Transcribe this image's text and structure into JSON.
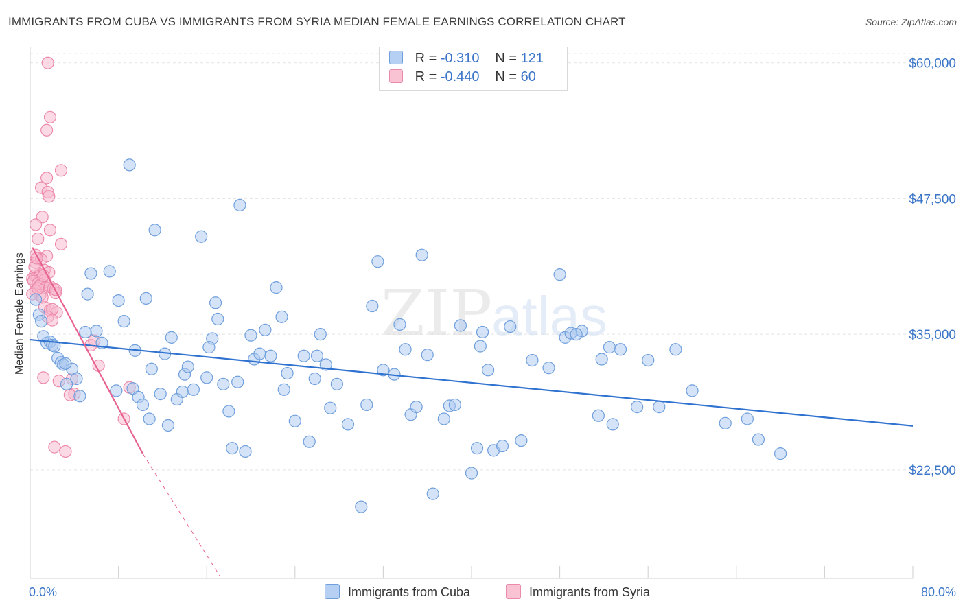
{
  "title": "IMMIGRANTS FROM CUBA VS IMMIGRANTS FROM SYRIA MEDIAN FEMALE EARNINGS CORRELATION CHART",
  "source": "Source: ZipAtlas.com",
  "watermark": {
    "zip": "ZIP",
    "atlas": "atlas"
  },
  "legend": {
    "cuba": {
      "r_label": "R = ",
      "r_value": "-0.310",
      "n_label": "N = ",
      "n_value": "121"
    },
    "syria": {
      "r_label": "R = ",
      "r_value": "-0.440",
      "n_label": "N = ",
      "n_value": "60"
    }
  },
  "bottom_legend": {
    "cuba": "Immigrants from Cuba",
    "syria": "Immigrants from Syria"
  },
  "colors": {
    "cuba_fill": "#a9c8f0",
    "cuba_stroke": "#6f9fdc",
    "cuba_line": "#2f72cf",
    "syria_fill": "#f7b6cb",
    "syria_stroke": "#ec8aab",
    "syria_line": "#e8628f",
    "axis_text": "#3a75c8"
  },
  "chart_data": {
    "type": "scatter",
    "xlabel": "",
    "ylabel": "Median Female Earnings",
    "xlim": [
      0,
      80
    ],
    "ylim": [
      12500,
      61500
    ],
    "x_tick_labels": [
      {
        "value": 0,
        "label": "0.0%"
      },
      {
        "value": 80,
        "label": "80.0%"
      }
    ],
    "y_ticks": [
      {
        "value": 60000,
        "label": "$60,000"
      },
      {
        "value": 47500,
        "label": "$47,500"
      },
      {
        "value": 35000,
        "label": "$35,000"
      },
      {
        "value": 22500,
        "label": "$22,500"
      }
    ],
    "series": [
      {
        "name": "Immigrants from Cuba",
        "R": -0.31,
        "N": 121,
        "trend": {
          "x": [
            0,
            80
          ],
          "y": [
            34500,
            26550
          ]
        },
        "points": [
          [
            0.5,
            38200
          ],
          [
            0.8,
            36800
          ],
          [
            1.0,
            36200
          ],
          [
            1.5,
            34200
          ],
          [
            1.8,
            34300
          ],
          [
            2.0,
            34000
          ],
          [
            2.2,
            33900
          ],
          [
            2.5,
            32800
          ],
          [
            2.8,
            32400
          ],
          [
            3.0,
            32200
          ],
          [
            3.3,
            30400
          ],
          [
            3.8,
            31800
          ],
          [
            4.2,
            30900
          ],
          [
            4.5,
            29300
          ],
          [
            5.2,
            38700
          ],
          [
            5.5,
            40600
          ],
          [
            6.0,
            35300
          ],
          [
            6.5,
            34200
          ],
          [
            7.2,
            40800
          ],
          [
            7.8,
            29800
          ],
          [
            8.0,
            38100
          ],
          [
            8.5,
            36200
          ],
          [
            9.0,
            50600
          ],
          [
            9.3,
            30000
          ],
          [
            9.5,
            33500
          ],
          [
            9.8,
            29200
          ],
          [
            10.2,
            28500
          ],
          [
            10.5,
            38300
          ],
          [
            10.8,
            27200
          ],
          [
            11.0,
            31800
          ],
          [
            11.3,
            44600
          ],
          [
            11.8,
            29500
          ],
          [
            12.2,
            33200
          ],
          [
            12.5,
            26600
          ],
          [
            12.8,
            34700
          ],
          [
            13.3,
            29000
          ],
          [
            13.8,
            29700
          ],
          [
            14.0,
            31300
          ],
          [
            14.3,
            32000
          ],
          [
            14.8,
            29900
          ],
          [
            15.5,
            44000
          ],
          [
            16.0,
            31000
          ],
          [
            16.5,
            34600
          ],
          [
            16.8,
            37900
          ],
          [
            17.0,
            36400
          ],
          [
            17.5,
            30400
          ],
          [
            18.0,
            27900
          ],
          [
            18.3,
            24500
          ],
          [
            18.8,
            30600
          ],
          [
            19.0,
            46900
          ],
          [
            19.5,
            24200
          ],
          [
            20.0,
            34900
          ],
          [
            20.3,
            32700
          ],
          [
            20.8,
            33200
          ],
          [
            21.3,
            35400
          ],
          [
            21.8,
            33000
          ],
          [
            22.3,
            39300
          ],
          [
            22.8,
            36600
          ],
          [
            23.0,
            29900
          ],
          [
            23.3,
            31400
          ],
          [
            24.0,
            27000
          ],
          [
            24.8,
            33000
          ],
          [
            25.3,
            25100
          ],
          [
            25.8,
            30900
          ],
          [
            26.3,
            35000
          ],
          [
            26.8,
            32200
          ],
          [
            27.2,
            28200
          ],
          [
            27.8,
            30400
          ],
          [
            28.8,
            26700
          ],
          [
            30.0,
            19100
          ],
          [
            30.5,
            28500
          ],
          [
            31.0,
            37600
          ],
          [
            31.5,
            41700
          ],
          [
            32.0,
            31700
          ],
          [
            33.0,
            31300
          ],
          [
            33.5,
            35900
          ],
          [
            34.0,
            33600
          ],
          [
            34.5,
            27600
          ],
          [
            35.0,
            28300
          ],
          [
            35.5,
            42300
          ],
          [
            36.5,
            20300
          ],
          [
            37.5,
            27200
          ],
          [
            38.0,
            28400
          ],
          [
            38.5,
            28500
          ],
          [
            39.0,
            35800
          ],
          [
            40.0,
            22200
          ],
          [
            40.5,
            24500
          ],
          [
            40.8,
            33900
          ],
          [
            41.5,
            31700
          ],
          [
            42.0,
            24300
          ],
          [
            42.8,
            24700
          ],
          [
            43.5,
            35700
          ],
          [
            44.5,
            25200
          ],
          [
            45.5,
            32600
          ],
          [
            47.0,
            31900
          ],
          [
            48.0,
            40500
          ],
          [
            48.5,
            34700
          ],
          [
            49.0,
            35100
          ],
          [
            50.0,
            35300
          ],
          [
            51.5,
            27500
          ],
          [
            51.8,
            32700
          ],
          [
            52.5,
            33800
          ],
          [
            52.8,
            26700
          ],
          [
            53.5,
            33600
          ],
          [
            55.0,
            28300
          ],
          [
            56.0,
            32600
          ],
          [
            57.0,
            28300
          ],
          [
            60.0,
            29800
          ],
          [
            63.0,
            26800
          ],
          [
            65.0,
            27200
          ],
          [
            66.0,
            25300
          ],
          [
            68.0,
            24000
          ],
          [
            49.5,
            35000
          ],
          [
            5.0,
            35200
          ],
          [
            3.2,
            32300
          ],
          [
            16.2,
            33800
          ],
          [
            26.0,
            33000
          ],
          [
            36.0,
            33100
          ],
          [
            41.0,
            35200
          ],
          [
            58.5,
            33600
          ],
          [
            1.2,
            34800
          ]
        ]
      },
      {
        "name": "Immigrants from Syria",
        "R": -0.44,
        "N": 60,
        "trend": {
          "x": [
            0.2,
            10.2
          ],
          "y": [
            43000,
            24000
          ]
        },
        "trend_dashed": {
          "x": [
            10.2,
            17.2
          ],
          "y": [
            24000,
            12700
          ]
        },
        "points": [
          [
            1.6,
            60000
          ],
          [
            1.8,
            55000
          ],
          [
            1.5,
            53800
          ],
          [
            2.8,
            50100
          ],
          [
            1.5,
            49400
          ],
          [
            1.0,
            48500
          ],
          [
            1.6,
            48100
          ],
          [
            1.7,
            47700
          ],
          [
            1.1,
            45800
          ],
          [
            0.5,
            45100
          ],
          [
            1.8,
            44600
          ],
          [
            2.8,
            43300
          ],
          [
            0.5,
            42300
          ],
          [
            1.5,
            42200
          ],
          [
            0.5,
            41600
          ],
          [
            1.0,
            41900
          ],
          [
            1.3,
            40900
          ],
          [
            1.7,
            40700
          ],
          [
            0.4,
            40400
          ],
          [
            0.6,
            40300
          ],
          [
            0.9,
            40500
          ],
          [
            1.1,
            40200
          ],
          [
            1.3,
            40000
          ],
          [
            0.2,
            40100
          ],
          [
            0.3,
            39900
          ],
          [
            0.7,
            39700
          ],
          [
            1.0,
            39600
          ],
          [
            0.8,
            39400
          ],
          [
            1.4,
            39300
          ],
          [
            1.8,
            39400
          ],
          [
            2.1,
            39200
          ],
          [
            0.5,
            39000
          ],
          [
            0.9,
            38600
          ],
          [
            2.3,
            38800
          ],
          [
            1.3,
            37500
          ],
          [
            1.8,
            37200
          ],
          [
            2.4,
            37000
          ],
          [
            2.0,
            37300
          ],
          [
            1.6,
            36600
          ],
          [
            0.2,
            38700
          ],
          [
            1.1,
            38400
          ],
          [
            2.3,
            39100
          ],
          [
            0.7,
            39200
          ],
          [
            5.5,
            34000
          ],
          [
            5.8,
            34400
          ],
          [
            6.2,
            32100
          ],
          [
            1.2,
            31000
          ],
          [
            2.6,
            30700
          ],
          [
            3.8,
            30900
          ],
          [
            4.0,
            29500
          ],
          [
            3.6,
            29400
          ],
          [
            8.5,
            27200
          ],
          [
            2.2,
            24600
          ],
          [
            3.2,
            24200
          ],
          [
            0.7,
            43800
          ],
          [
            0.4,
            41200
          ],
          [
            0.6,
            42000
          ],
          [
            1.2,
            40400
          ],
          [
            2.0,
            36300
          ],
          [
            9.0,
            30100
          ]
        ]
      }
    ]
  }
}
